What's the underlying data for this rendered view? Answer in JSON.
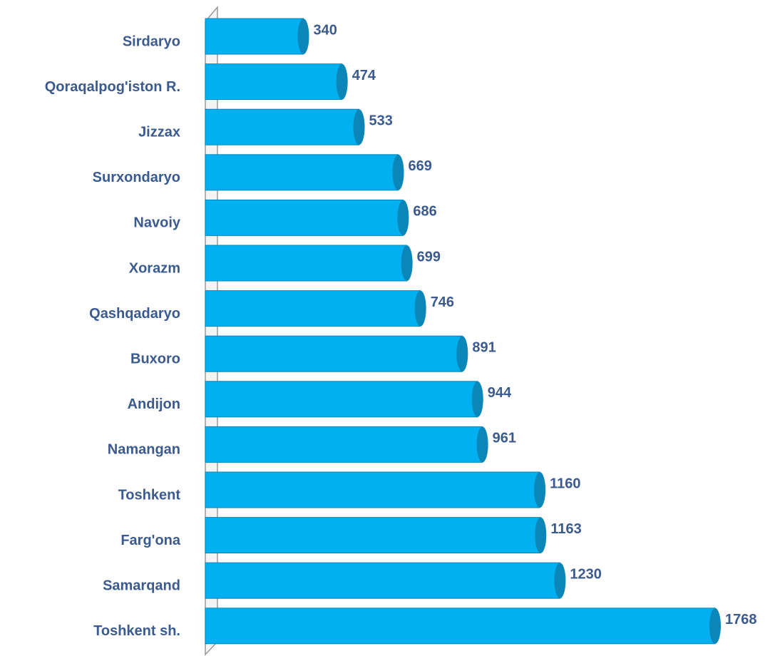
{
  "chart_data": {
    "type": "bar",
    "orientation": "horizontal",
    "categories": [
      "Sirdaryo",
      "Qoraqalpog'iston R.",
      "Jizzax",
      "Surxondaryo",
      "Navoiy",
      "Xorazm",
      "Qashqadaryo",
      "Buxoro",
      "Andijon",
      "Namangan",
      "Toshkent",
      "Farg'ona",
      "Samarqand",
      "Toshkent sh."
    ],
    "values": [
      340,
      474,
      533,
      669,
      686,
      699,
      746,
      891,
      944,
      961,
      1160,
      1163,
      1230,
      1768
    ],
    "color": "#00b0f0",
    "cap_color": "#0a86b8",
    "label_color": "#3b5a8e"
  }
}
